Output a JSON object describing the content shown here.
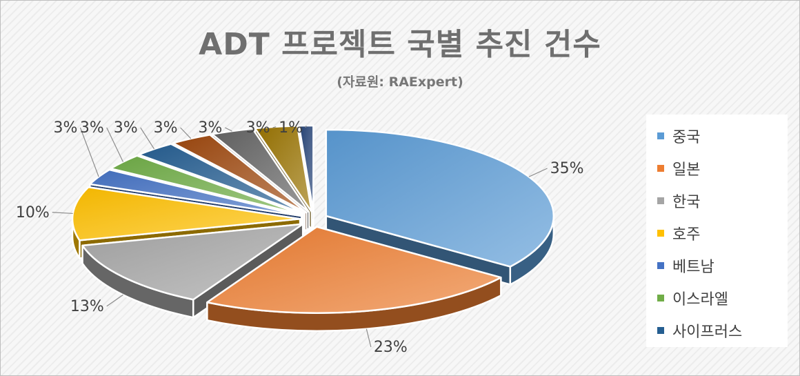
{
  "chart_data": {
    "type": "pie",
    "title": "ADT 프로젝트 국별 추진 건수",
    "subtitle": "(자료원: RAExpert)",
    "legend_position": "right",
    "three_d": true,
    "exploded": true,
    "slices": [
      {
        "name": "중국",
        "value": 35,
        "label": "35%",
        "color": "#5b9bd5"
      },
      {
        "name": "일본",
        "value": 23,
        "label": "23%",
        "color": "#ed7d31"
      },
      {
        "name": "한국",
        "value": 13,
        "label": "13%",
        "color": "#a5a5a5"
      },
      {
        "name": "호주",
        "value": 10,
        "label": "10%",
        "color": "#ffc000"
      },
      {
        "name": "베트남",
        "value": 3,
        "label": "3%",
        "color": "#4472c4"
      },
      {
        "name": "이스라엘",
        "value": 3,
        "label": "3%",
        "color": "#70ad47"
      },
      {
        "name": "사이프러스",
        "value": 3,
        "label": "3%",
        "color": "#255e91"
      },
      {
        "name": "",
        "value": 3,
        "label": "3%",
        "color": "#9e480e"
      },
      {
        "name": "",
        "value": 3,
        "label": "3%",
        "color": "#636363"
      },
      {
        "name": "",
        "value": 3,
        "label": "3%",
        "color": "#997300"
      },
      {
        "name": "",
        "value": 1,
        "label": "1%",
        "color": "#264478"
      }
    ]
  }
}
